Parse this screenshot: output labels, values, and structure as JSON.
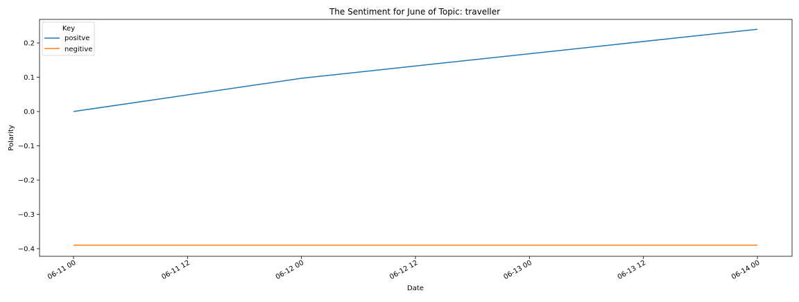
{
  "chart_data": {
    "type": "line",
    "title": "The Sentiment for June of Topic: traveller",
    "xlabel": "Date",
    "ylabel": "Polarity",
    "x": [
      "06-11 00",
      "06-12 00",
      "06-14 00"
    ],
    "x_ticks": [
      "06-11 00",
      "06-11 12",
      "06-12 00",
      "06-12 12",
      "06-13 00",
      "06-13 12",
      "06-14 00"
    ],
    "y_ticks": [
      "0.2",
      "0.1",
      "0.0",
      "−0.1",
      "−0.2",
      "−0.3",
      "−0.4"
    ],
    "y_tick_values": [
      0.2,
      0.1,
      0.0,
      -0.1,
      -0.2,
      -0.3,
      -0.4
    ],
    "ylim": [
      -0.41,
      0.25
    ],
    "grid": false,
    "series": [
      {
        "name": "positve",
        "color": "#1f77b4",
        "values": [
          0.0,
          0.097,
          0.24
        ]
      },
      {
        "name": "negitive",
        "color": "#ff7f0e",
        "values": [
          -0.39,
          -0.39,
          -0.39
        ]
      }
    ],
    "legend": {
      "title": "Key",
      "placement": "top-left"
    }
  }
}
